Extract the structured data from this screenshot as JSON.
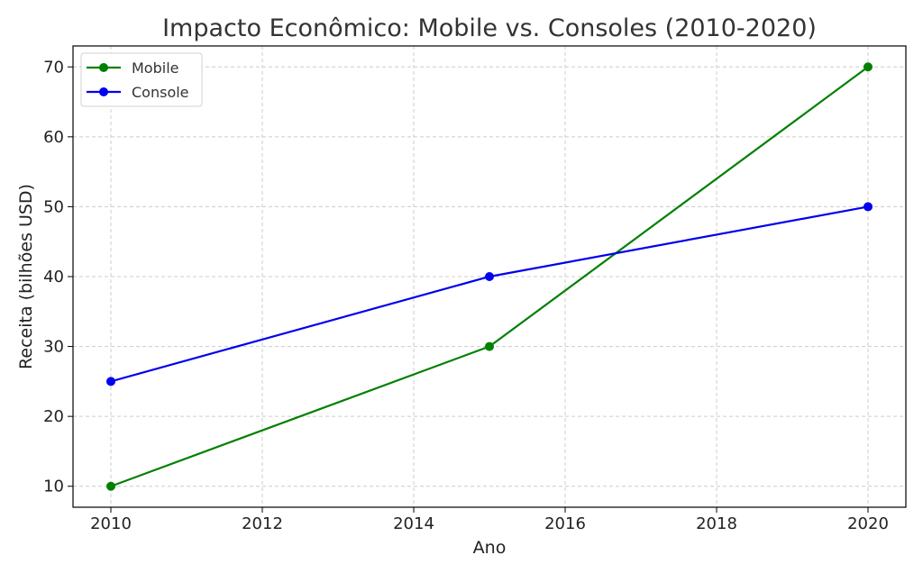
{
  "chart_data": {
    "type": "line",
    "title": "Impacto Econômico: Mobile vs. Consoles (2010-2020)",
    "xlabel": "Ano",
    "ylabel": "Receita (bilhões USD)",
    "xlim": [
      2009.5,
      2020.5
    ],
    "ylim": [
      7,
      73
    ],
    "xticks": [
      2010,
      2012,
      2014,
      2016,
      2018,
      2020
    ],
    "yticks": [
      10,
      20,
      30,
      40,
      50,
      60,
      70
    ],
    "grid": true,
    "legend_position": "top-left",
    "series": [
      {
        "name": "Mobile",
        "color": "#008000",
        "x": [
          2010,
          2015,
          2020
        ],
        "y": [
          10,
          30,
          70
        ]
      },
      {
        "name": "Console",
        "color": "#0000ee",
        "x": [
          2010,
          2015,
          2020
        ],
        "y": [
          25,
          40,
          50
        ]
      }
    ]
  }
}
